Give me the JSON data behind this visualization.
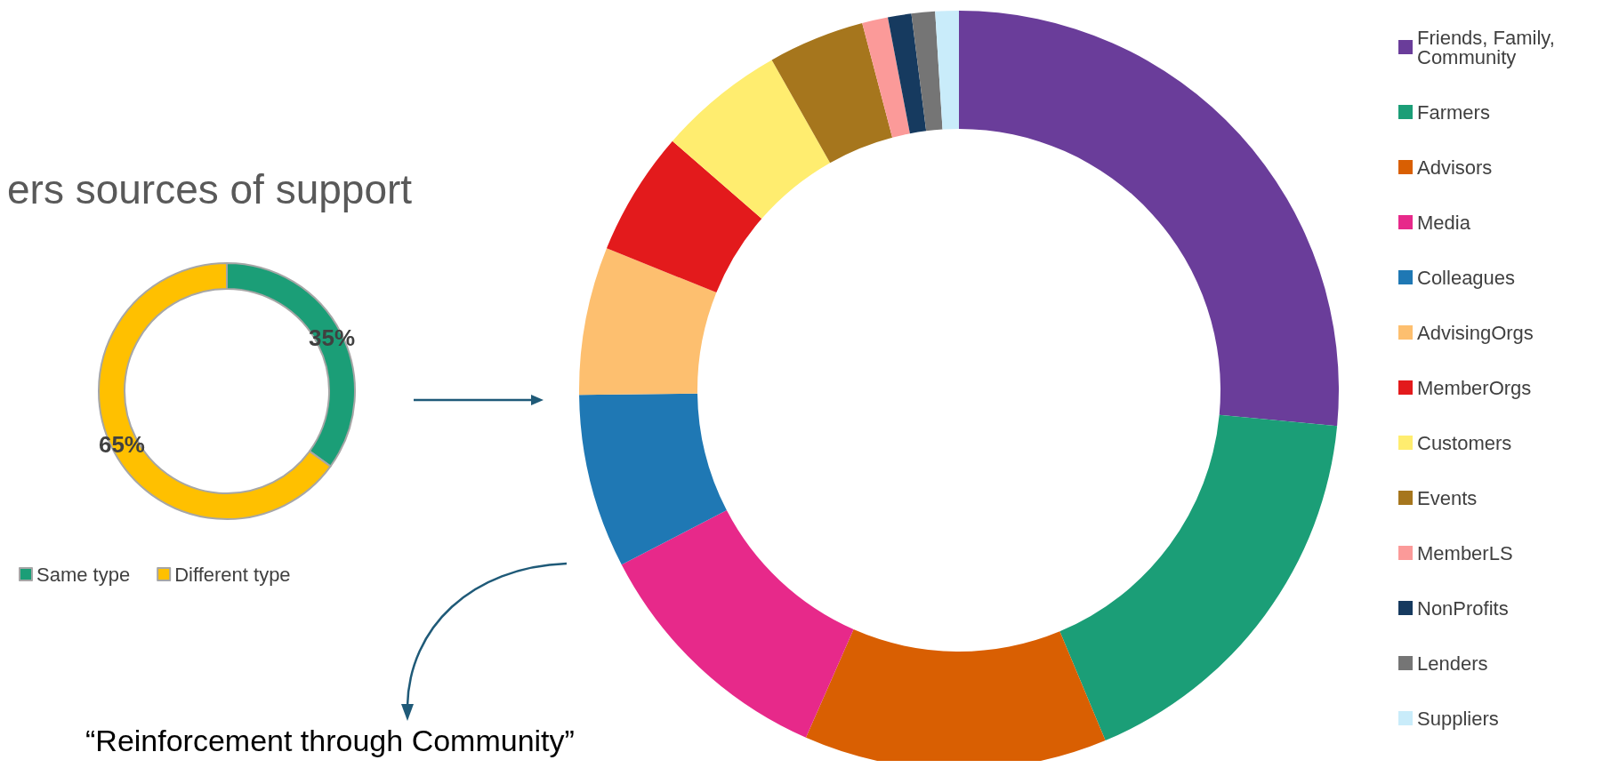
{
  "chart_data": [
    {
      "type": "donut",
      "title": "ers sources of support",
      "categories": [
        "Same type",
        "Different type"
      ],
      "values": [
        35,
        65
      ],
      "colors": [
        "#1b9e77",
        "#ffc000"
      ],
      "value_labels": [
        "35%",
        "65%"
      ],
      "legend": "bottom",
      "annotations": [
        "“Reinforcement through Community”"
      ]
    },
    {
      "type": "donut",
      "categories": [
        "Friends, Family, Community",
        "Farmers",
        "Advisors",
        "Media",
        "Colleagues",
        "AdvisingOrgs",
        "MemberOrgs",
        "Customers",
        "Events",
        "MemberLS",
        "NonProfits",
        "Lenders",
        "Suppliers"
      ],
      "values": [
        26.5,
        17.2,
        12.9,
        10.8,
        7.4,
        6.3,
        5.3,
        5.4,
        4.1,
        1.1,
        1,
        1,
        1
      ],
      "colors": [
        "#6a3d9a",
        "#1b9e77",
        "#d95f02",
        "#e7298a",
        "#1f78b4",
        "#fdbf6f",
        "#e31a1c",
        "#ffed6f",
        "#a6761d",
        "#fb9a99",
        "#163a5f",
        "#757575",
        "#c9ecfa"
      ],
      "legend": "right"
    }
  ]
}
